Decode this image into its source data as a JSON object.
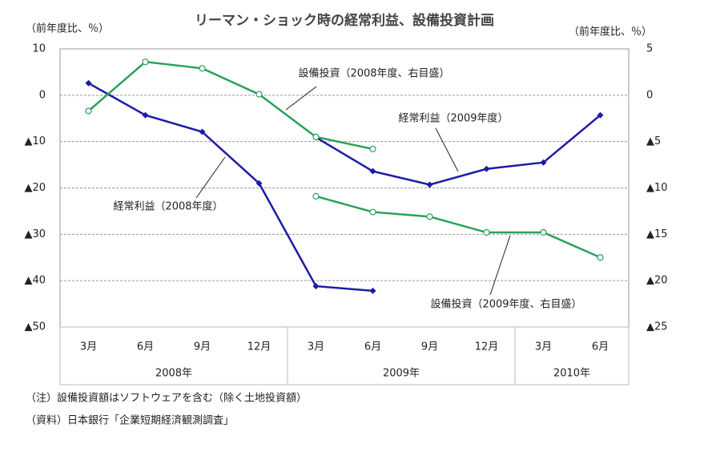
{
  "chart_data": {
    "type": "line",
    "title": "リーマン・ショック時の経常利益、設備投資計画",
    "y_label": "（前年度比、％）",
    "y2_label": "（前年度比、％）",
    "categories": [
      "3月",
      "6月",
      "9月",
      "12月",
      "3月",
      "6月",
      "9月",
      "12月",
      "3月",
      "6月"
    ],
    "category_groups": [
      "2008年",
      "2008年",
      "2008年",
      "2008年",
      "2009年",
      "2009年",
      "2009年",
      "2009年",
      "2010年",
      "2010年"
    ],
    "ylim": [
      -50,
      10
    ],
    "yticks": [
      10,
      0,
      {
        "value": -10,
        "label": "▲10"
      },
      {
        "value": -20,
        "label": "▲20"
      },
      {
        "value": -30,
        "label": "▲30"
      },
      {
        "value": -40,
        "label": "▲40"
      },
      {
        "value": -50,
        "label": "▲50"
      }
    ],
    "y2lim": [
      -25,
      5
    ],
    "y2ticks": [
      5,
      0,
      {
        "value": -5,
        "label": "▲5"
      },
      {
        "value": -10,
        "label": "▲10"
      },
      {
        "value": -15,
        "label": "▲15"
      },
      {
        "value": -20,
        "label": "▲20"
      },
      {
        "value": -25,
        "label": "▲25"
      }
    ],
    "grid": true,
    "series": [
      {
        "name": "経常利益（2008年度）",
        "color": "#1c1ca8",
        "marker": "diamond",
        "values": [
          2.6,
          -4.3,
          -7.9,
          -19,
          -41.2,
          -42.2,
          null,
          null,
          null,
          null
        ]
      },
      {
        "name": "経常利益（2009年度）",
        "color": "#1c1ca8",
        "marker": "diamond",
        "values": [
          null,
          null,
          null,
          null,
          -9.1,
          -16.4,
          -19.3,
          -15.9,
          -14.5,
          -4.3
        ]
      },
      {
        "name": "設備投資（2008年度、右目盛）",
        "color": "#2aa05a",
        "marker": "circle",
        "axis": "y2",
        "values": [
          -1.7,
          3.6,
          2.9,
          0.1,
          -4.5,
          -5.8,
          null,
          null,
          null,
          null
        ]
      },
      {
        "name": "設備投資（2009年度、右目盛）",
        "color": "#2aa05a",
        "marker": "circle",
        "axis": "y2",
        "values": [
          null,
          null,
          null,
          null,
          -10.9,
          -12.6,
          -13.1,
          -14.8,
          -14.8,
          -17.5
        ]
      }
    ],
    "notes": [
      "（注）設備投資額はソフトウェアを含む（除く土地投資額）",
      "（資料）日本銀行「企業短期経済観測調査」"
    ]
  }
}
